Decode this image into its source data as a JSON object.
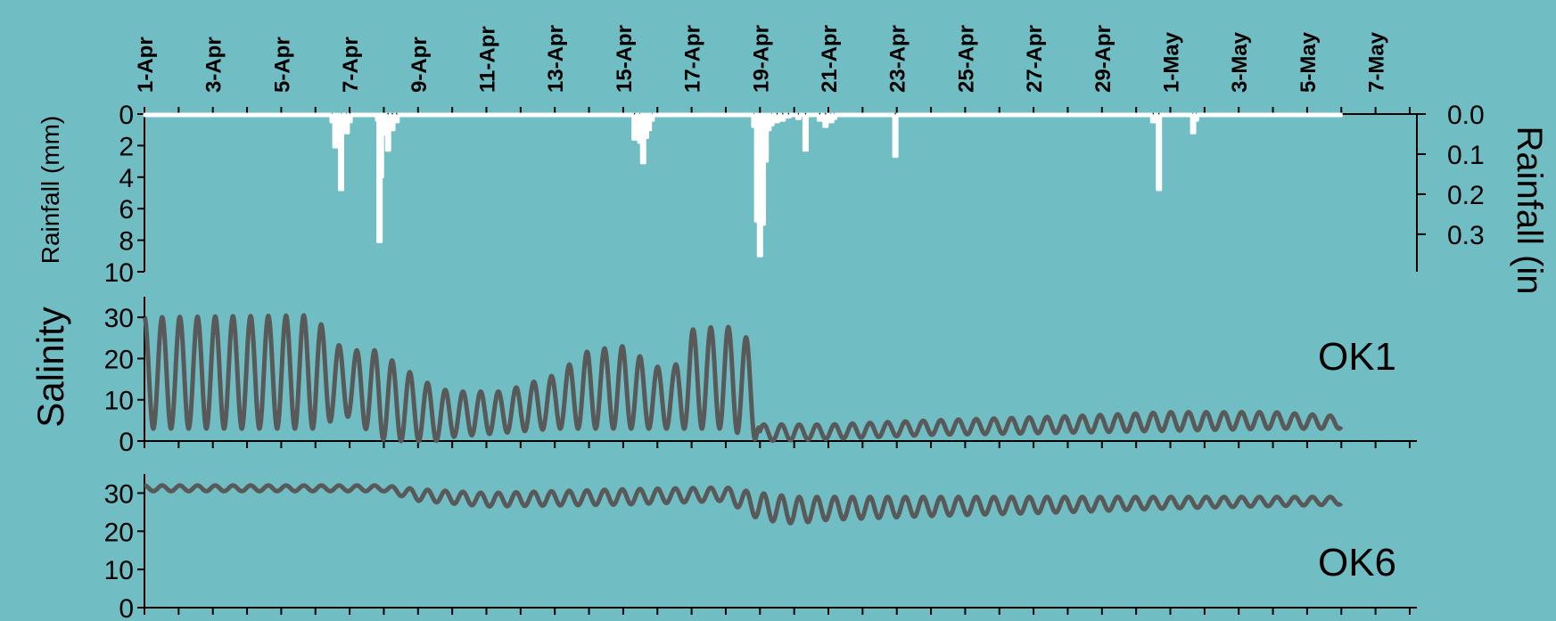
{
  "chart_data": [
    {
      "type": "area",
      "name": "rainfall-panel",
      "ylabel_left": "Rainfall (mm)",
      "ylabel_right": "Rainfall (in",
      "ylim_left": [
        0,
        10
      ],
      "ylim_right": [
        0,
        0.3937
      ],
      "y_inverted": true,
      "yticks_left": [
        0,
        2,
        4,
        6,
        8,
        10
      ],
      "yticks_right": [
        0.0,
        0.1,
        0.2,
        0.3
      ],
      "yticks_right_labels": [
        "0.0",
        "0.1",
        "0.2",
        "0.3"
      ],
      "x_dates": [
        "1-Apr",
        "3-Apr",
        "5-Apr",
        "7-Apr",
        "9-Apr",
        "11-Apr",
        "13-Apr",
        "15-Apr",
        "17-Apr",
        "19-Apr",
        "21-Apr",
        "23-Apr",
        "25-Apr",
        "27-Apr",
        "29-Apr",
        "1-May",
        "3-May",
        "5-May",
        "7-May"
      ],
      "x": [
        "6-Apr 12:00",
        "6-Apr 14:00",
        "6-Apr 16:00",
        "6-Apr 18:00",
        "6-Apr 22:00",
        "7-Apr 00:00",
        "7-Apr 20:00",
        "7-Apr 21:00",
        "7-Apr 22:00",
        "7-Apr 23:00",
        "8-Apr 00:00",
        "8-Apr 03:00",
        "8-Apr 06:00",
        "8-Apr 09:00",
        "15-Apr 08:00",
        "15-Apr 12:00",
        "15-Apr 14:00",
        "15-Apr 16:00",
        "15-Apr 18:00",
        "15-Apr 20:00",
        "18-Apr 20:00",
        "18-Apr 22:00",
        "19-Apr 00:00",
        "19-Apr 02:00",
        "19-Apr 04:00",
        "19-Apr 06:00",
        "19-Apr 08:00",
        "19-Apr 12:00",
        "19-Apr 16:00",
        "19-Apr 20:00",
        "20-Apr 03:00",
        "20-Apr 08:00",
        "20-Apr 18:00",
        "20-Apr 22:00",
        "21-Apr 02:00",
        "21-Apr 04:00",
        "22-Apr 23:00",
        "30-Apr 12:00",
        "30-Apr 16:00",
        "1-May 16:00",
        "1-May 18:00"
      ],
      "values": [
        0.5,
        2.1,
        1.0,
        4.8,
        1.2,
        0.5,
        0.4,
        8.1,
        4.0,
        1.3,
        0.4,
        2.3,
        1.0,
        0.5,
        1.6,
        1.8,
        3.1,
        1.5,
        1.0,
        0.4,
        0.8,
        6.8,
        9.0,
        7.0,
        3.0,
        1.0,
        0.7,
        0.5,
        0.4,
        0.2,
        0.3,
        2.3,
        0.4,
        0.8,
        0.5,
        0.3,
        2.7,
        0.5,
        4.8,
        1.2,
        0.4
      ],
      "color": "#ffffff"
    },
    {
      "type": "line",
      "name": "OK1",
      "label": "OK1",
      "ylabel": "Salinity",
      "ylim": [
        0,
        35
      ],
      "yticks": [
        0,
        10,
        20,
        30
      ],
      "x_start": "1-Apr",
      "x_end": "6-May",
      "tide_period_hours": 12.42,
      "envelope_dates": [
        "1-Apr",
        "6-Apr",
        "6-Apr 12:00",
        "7-Apr",
        "7-Apr 20:00",
        "8-Apr 12:00",
        "9-Apr 12:00",
        "10-Apr",
        "11-Apr 12:00",
        "13-Apr",
        "14-Apr",
        "15-Apr",
        "16-Apr",
        "16-Apr 12:00",
        "17-Apr",
        "18-Apr",
        "18-Apr 20:00",
        "19-Apr",
        "21-Apr",
        "24-Apr",
        "28-Apr",
        "1-May",
        "4-May",
        "6-May"
      ],
      "envelope_high": [
        30,
        30.5,
        24,
        22,
        22,
        18,
        13,
        12,
        12,
        16,
        22,
        23,
        18,
        18,
        27,
        28,
        24,
        4,
        4,
        5,
        6,
        7,
        7,
        6
      ],
      "envelope_low": [
        3,
        3,
        5,
        6,
        0.5,
        0,
        0,
        1,
        2,
        3,
        3,
        3,
        3,
        3,
        3,
        3,
        0.5,
        0,
        0.5,
        1.5,
        2,
        2.5,
        3,
        3
      ],
      "color": "#595959"
    },
    {
      "type": "line",
      "name": "OK6",
      "label": "OK6",
      "ylabel": "",
      "ylim": [
        0,
        35
      ],
      "yticks": [
        0,
        10,
        20,
        30
      ],
      "x_start": "1-Apr",
      "x_end": "6-May",
      "tide_period_hours": 12.42,
      "envelope_dates": [
        "1-Apr",
        "8-Apr",
        "9-Apr",
        "11-Apr",
        "15-Apr",
        "18-Apr",
        "19-Apr",
        "20-Apr",
        "21-Apr",
        "24-Apr",
        "28-Apr",
        "1-May",
        "6-May"
      ],
      "envelope_high": [
        32,
        32,
        31,
        30,
        31,
        31.5,
        30,
        29,
        29,
        29,
        29,
        29,
        29
      ],
      "envelope_low": [
        30.5,
        30.5,
        28,
        26.5,
        27,
        28,
        23,
        22,
        23,
        24,
        25,
        26,
        27
      ],
      "color": "#595959"
    }
  ]
}
